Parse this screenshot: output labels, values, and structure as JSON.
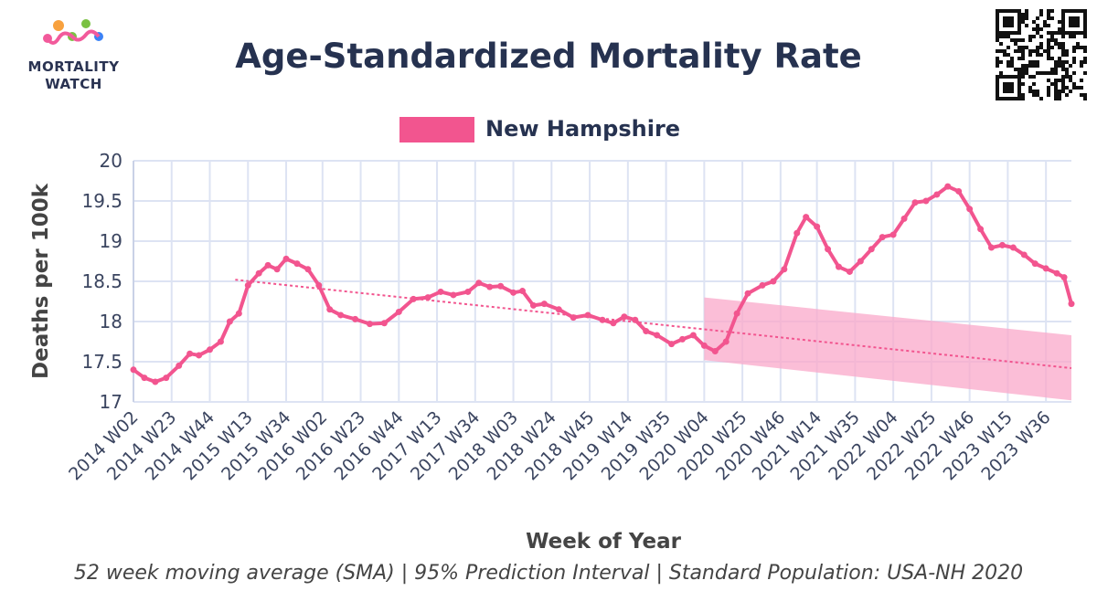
{
  "brand": {
    "line1": "MORTALITY",
    "line2": "WATCH",
    "colors": [
      "#f25a9b",
      "#f8a13e",
      "#7ac142",
      "#3b82f6",
      "#8b5cf6"
    ]
  },
  "qr_icon": "qr-code-icon",
  "caption": "52 week moving average (SMA) | 95% Prediction Interval | Standard Population: USA-NH 2020",
  "chart_data": {
    "type": "line",
    "title": "Age-Standardized Mortality Rate",
    "xlabel": "Week of Year",
    "ylabel": "Deaths per 100k",
    "ylim": [
      17,
      20
    ],
    "yticks": [
      "17",
      "17.5",
      "18",
      "18.5",
      "19",
      "19.5",
      "20"
    ],
    "xticks": [
      "2014 W02",
      "2014 W23",
      "2014 W44",
      "2015 W13",
      "2015 W34",
      "2016 W02",
      "2016 W23",
      "2016 W44",
      "2017 W13",
      "2017 W34",
      "2018 W03",
      "2018 W24",
      "2018 W45",
      "2019 W14",
      "2019 W35",
      "2020 W04",
      "2020 W25",
      "2020 W46",
      "2021 W14",
      "2021 W35",
      "2022 W04",
      "2022 W25",
      "2022 W46",
      "2023 W15",
      "2023 W36"
    ],
    "grid": true,
    "legend_position": "top-center",
    "colors": {
      "line": "#f2558f",
      "band": "#f9a8c9",
      "trend": "#f2558f"
    },
    "series": [
      {
        "name": "New Hampshire",
        "points": [
          [
            "2014 W02",
            17.4
          ],
          [
            "2014 W08",
            17.3
          ],
          [
            "2014 W14",
            17.25
          ],
          [
            "2014 W20",
            17.3
          ],
          [
            "2014 W27",
            17.45
          ],
          [
            "2014 W33",
            17.6
          ],
          [
            "2014 W38",
            17.58
          ],
          [
            "2014 W44",
            17.65
          ],
          [
            "2014 W50",
            17.75
          ],
          [
            "2015 W03",
            18.0
          ],
          [
            "2015 W08",
            18.1
          ],
          [
            "2015 W13",
            18.45
          ],
          [
            "2015 W19",
            18.6
          ],
          [
            "2015 W24",
            18.7
          ],
          [
            "2015 W29",
            18.65
          ],
          [
            "2015 W34",
            18.78
          ],
          [
            "2015 W40",
            18.72
          ],
          [
            "2015 W46",
            18.65
          ],
          [
            "2015 W52",
            18.45
          ],
          [
            "2016 W06",
            18.15
          ],
          [
            "2016 W12",
            18.08
          ],
          [
            "2016 W20",
            18.03
          ],
          [
            "2016 W28",
            17.97
          ],
          [
            "2016 W36",
            17.98
          ],
          [
            "2016 W44",
            18.12
          ],
          [
            "2016 W52",
            18.28
          ],
          [
            "2017 W08",
            18.3
          ],
          [
            "2017 W15",
            18.37
          ],
          [
            "2017 W22",
            18.33
          ],
          [
            "2017 W30",
            18.37
          ],
          [
            "2017 W36",
            18.48
          ],
          [
            "2017 W42",
            18.43
          ],
          [
            "2017 W48",
            18.44
          ],
          [
            "2018 W03",
            18.36
          ],
          [
            "2018 W08",
            18.38
          ],
          [
            "2018 W14",
            18.2
          ],
          [
            "2018 W20",
            18.22
          ],
          [
            "2018 W28",
            18.15
          ],
          [
            "2018 W36",
            18.05
          ],
          [
            "2018 W44",
            18.08
          ],
          [
            "2018 W52",
            18.02
          ],
          [
            "2019 W06",
            17.98
          ],
          [
            "2019 W12",
            18.06
          ],
          [
            "2019 W18",
            18.02
          ],
          [
            "2019 W24",
            17.88
          ],
          [
            "2019 W30",
            17.83
          ],
          [
            "2019 W38",
            17.72
          ],
          [
            "2019 W44",
            17.78
          ],
          [
            "2019 W50",
            17.83
          ],
          [
            "2020 W04",
            17.7
          ],
          [
            "2020 W10",
            17.63
          ],
          [
            "2020 W16",
            17.75
          ],
          [
            "2020 W22",
            18.1
          ],
          [
            "2020 W28",
            18.35
          ],
          [
            "2020 W36",
            18.45
          ],
          [
            "2020 W42",
            18.5
          ],
          [
            "2020 W48",
            18.65
          ],
          [
            "2021 W03",
            19.1
          ],
          [
            "2021 W08",
            19.3
          ],
          [
            "2021 W14",
            19.18
          ],
          [
            "2021 W20",
            18.9
          ],
          [
            "2021 W26",
            18.68
          ],
          [
            "2021 W32",
            18.62
          ],
          [
            "2021 W38",
            18.75
          ],
          [
            "2021 W44",
            18.9
          ],
          [
            "2021 W50",
            19.05
          ],
          [
            "2022 W04",
            19.08
          ],
          [
            "2022 W10",
            19.28
          ],
          [
            "2022 W16",
            19.48
          ],
          [
            "2022 W22",
            19.5
          ],
          [
            "2022 W28",
            19.58
          ],
          [
            "2022 W34",
            19.68
          ],
          [
            "2022 W40",
            19.62
          ],
          [
            "2022 W46",
            19.4
          ],
          [
            "2022 W52",
            19.15
          ],
          [
            "2023 W06",
            18.92
          ],
          [
            "2023 W12",
            18.95
          ],
          [
            "2023 W18",
            18.92
          ],
          [
            "2023 W24",
            18.83
          ],
          [
            "2023 W30",
            18.72
          ],
          [
            "2023 W36",
            18.66
          ],
          [
            "2023 W42",
            18.6
          ],
          [
            "2023 W46",
            18.55
          ],
          [
            "2023 W50",
            18.22
          ]
        ]
      },
      {
        "kind": "trend",
        "points": [
          [
            "2015 W06",
            18.52
          ],
          [
            "2023 W50",
            17.42
          ]
        ]
      },
      {
        "kind": "prediction-interval",
        "points_lower": [
          [
            "2020 W04",
            17.52
          ],
          [
            "2023 W50",
            17.02
          ]
        ],
        "points_upper": [
          [
            "2020 W04",
            18.3
          ],
          [
            "2023 W50",
            17.83
          ]
        ]
      }
    ]
  }
}
